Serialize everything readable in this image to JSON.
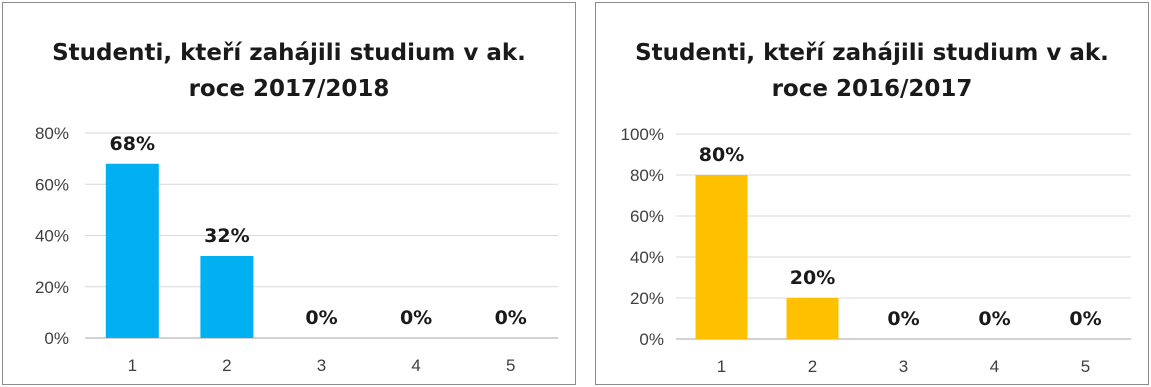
{
  "chart_data": [
    {
      "type": "bar",
      "title_line1": "Studenti, kteří zahájili studium v ak.",
      "title_line2": "roce 2017/2018",
      "categories": [
        "1",
        "2",
        "3",
        "4",
        "5"
      ],
      "values": [
        68,
        32,
        0,
        0,
        0
      ],
      "data_labels": [
        "68%",
        "32%",
        "0%",
        "0%",
        "0%"
      ],
      "ylim": [
        0,
        80
      ],
      "y_ticks": [
        0,
        20,
        40,
        60,
        80
      ],
      "y_tick_labels": [
        "0%",
        "20%",
        "40%",
        "60%",
        "80%"
      ],
      "bar_color": "#00b0f0",
      "grid": true,
      "legend": "none"
    },
    {
      "type": "bar",
      "title_line1": "Studenti, kteří zahájili studium v ak.",
      "title_line2": "roce 2016/2017",
      "categories": [
        "1",
        "2",
        "3",
        "4",
        "5"
      ],
      "values": [
        80,
        20,
        0,
        0,
        0
      ],
      "data_labels": [
        "80%",
        "20%",
        "0%",
        "0%",
        "0%"
      ],
      "ylim": [
        0,
        100
      ],
      "y_ticks": [
        0,
        20,
        40,
        60,
        80,
        100
      ],
      "y_tick_labels": [
        "0%",
        "20%",
        "40%",
        "60%",
        "80%",
        "100%"
      ],
      "bar_color": "#ffc000",
      "grid": true,
      "legend": "none"
    }
  ]
}
